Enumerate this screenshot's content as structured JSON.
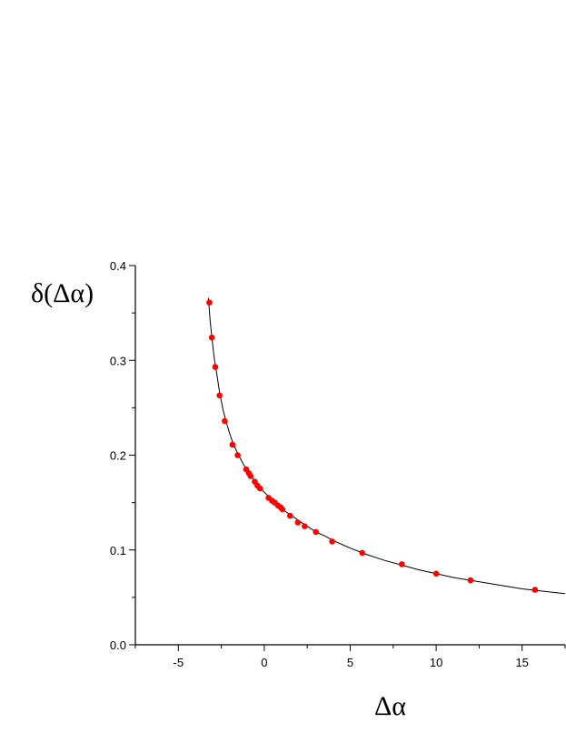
{
  "chart_data": {
    "type": "scatter",
    "xlabel": "Δα",
    "ylabel": "δ(Δα)",
    "xlim": [
      -7.5,
      17.5
    ],
    "ylim": [
      0.0,
      0.4
    ],
    "x_ticks": [
      -5,
      0,
      5,
      10,
      15
    ],
    "y_ticks": [
      0.0,
      0.1,
      0.2,
      0.3,
      0.4
    ],
    "x_tick_labels": [
      "-5",
      "0",
      "5",
      "10",
      "15"
    ],
    "y_tick_labels": [
      "0.0",
      "0.1",
      "0.2",
      "0.3",
      "0.4"
    ],
    "grid": false,
    "point_color": "#ff0000",
    "curve_color": "#000000",
    "series": [
      {
        "kind": "points",
        "x": [
          -3.2,
          -3.05,
          -2.85,
          -2.6,
          -2.3,
          -1.85,
          -1.55,
          -1.05,
          -0.9,
          -0.8,
          -0.55,
          -0.4,
          -0.25,
          0.25,
          0.45,
          0.6,
          0.8,
          0.95,
          1.05,
          1.5,
          1.95,
          2.35,
          3.0,
          3.95,
          5.7,
          8.0,
          10.0,
          12.0,
          15.75
        ],
        "y": [
          0.361,
          0.324,
          0.293,
          0.263,
          0.236,
          0.211,
          0.2,
          0.185,
          0.181,
          0.178,
          0.172,
          0.168,
          0.165,
          0.155,
          0.152,
          0.15,
          0.147,
          0.145,
          0.143,
          0.136,
          0.129,
          0.125,
          0.119,
          0.109,
          0.097,
          0.085,
          0.075,
          0.068,
          0.058
        ]
      },
      {
        "kind": "curve",
        "x": [
          -3.25,
          -3.15,
          -3.05,
          -2.9,
          -2.75,
          -2.6,
          -2.4,
          -2.2,
          -2.0,
          -1.8,
          -1.5,
          -1.2,
          -0.9,
          -0.6,
          -0.3,
          0.0,
          0.4,
          0.8,
          1.2,
          1.6,
          2.0,
          2.5,
          3.0,
          3.5,
          4.0,
          5.0,
          6.0,
          7.0,
          8.0,
          9.0,
          10.0,
          11.0,
          12.0,
          13.0,
          14.0,
          15.0,
          16.0,
          17.0,
          17.5
        ],
        "y": [
          0.366,
          0.342,
          0.324,
          0.301,
          0.284,
          0.266,
          0.248,
          0.234,
          0.222,
          0.212,
          0.2,
          0.19,
          0.181,
          0.174,
          0.167,
          0.161,
          0.154,
          0.147,
          0.141,
          0.136,
          0.131,
          0.125,
          0.119,
          0.115,
          0.11,
          0.102,
          0.095,
          0.089,
          0.084,
          0.079,
          0.075,
          0.071,
          0.068,
          0.065,
          0.062,
          0.059,
          0.057,
          0.055,
          0.054
        ]
      }
    ]
  }
}
